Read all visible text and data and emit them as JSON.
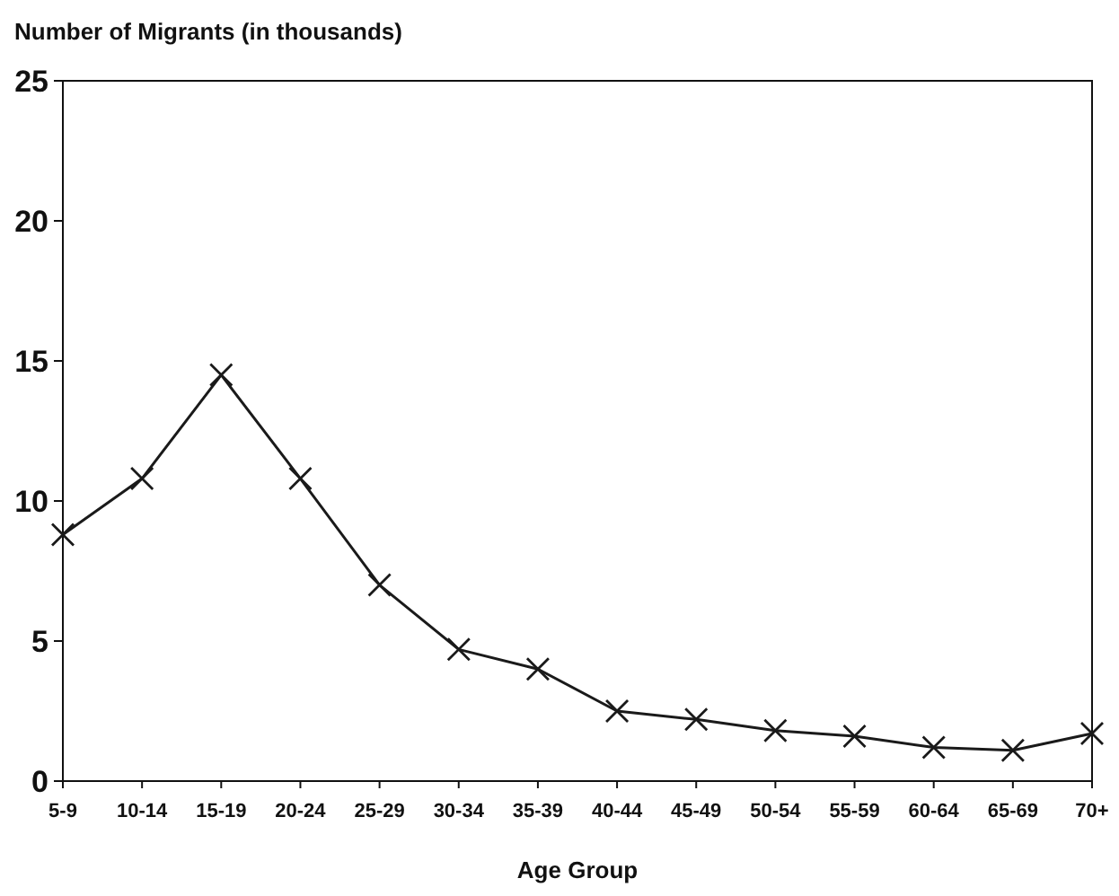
{
  "chart_data": {
    "type": "line",
    "xlabel": "Age Group",
    "ylabel": "Number of Migrants (in thousands)",
    "categories": [
      "5-9",
      "10-14",
      "15-19",
      "20-24",
      "25-29",
      "30-34",
      "35-39",
      "40-44",
      "45-49",
      "50-54",
      "55-59",
      "60-64",
      "65-69",
      "70+"
    ],
    "series": [
      {
        "color": "#1a1a1a",
        "values": [
          8.8,
          10.8,
          14.5,
          10.8,
          7.0,
          4.7,
          4.0,
          2.5,
          2.2,
          1.8,
          1.6,
          1.2,
          1.1,
          1.7
        ]
      }
    ],
    "ylim": [
      0,
      25
    ],
    "yticks": [
      0,
      5,
      10,
      15,
      20,
      25
    ],
    "grid": false,
    "marker": "cross",
    "line_style": "solid"
  }
}
